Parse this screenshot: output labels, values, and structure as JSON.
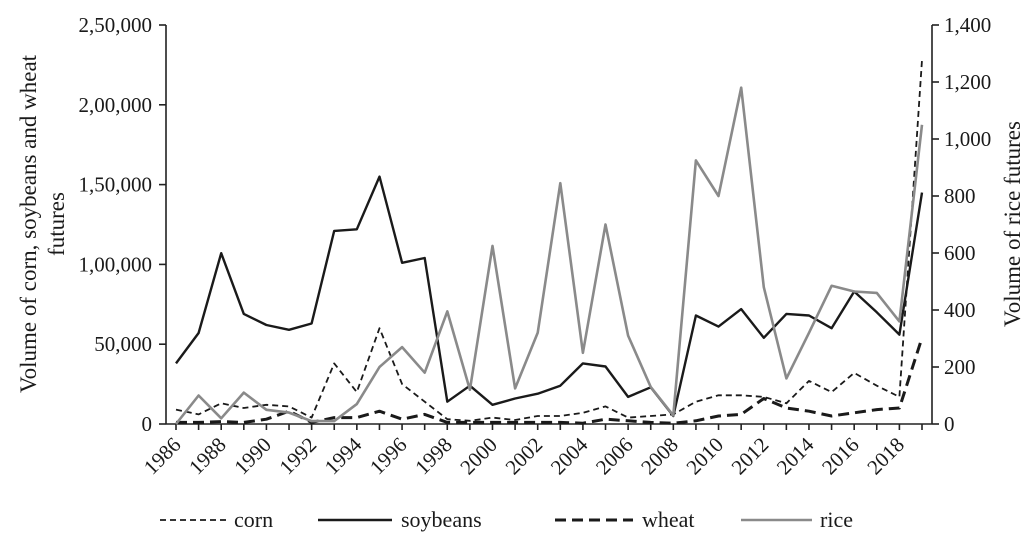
{
  "chart_data": {
    "type": "line",
    "x": [
      1986,
      1987,
      1988,
      1989,
      1990,
      1991,
      1992,
      1993,
      1994,
      1995,
      1996,
      1997,
      1998,
      1999,
      2000,
      2001,
      2002,
      2003,
      2004,
      2005,
      2006,
      2007,
      2008,
      2009,
      2010,
      2011,
      2012,
      2013,
      2014,
      2015,
      2016,
      2017,
      2018,
      2019
    ],
    "x_tick_labels": [
      "1986",
      "1988",
      "1990",
      "1992",
      "1994",
      "1996",
      "1998",
      "2000",
      "2002",
      "2004",
      "2006",
      "2008",
      "2010",
      "2012",
      "2014",
      "2016",
      "2018"
    ],
    "y_left": {
      "label": "Volume of corn, soybeans and wheat futures",
      "label_lines": [
        "Volume of corn, soybeans and wheat",
        "futures"
      ],
      "ylim": [
        0,
        250000
      ],
      "tick_labels": [
        "0",
        "50,000",
        "1,00,000",
        "1,50,000",
        "2,00,000",
        "2,50,000"
      ]
    },
    "y_right": {
      "label": "Volume of rice futures",
      "ylim": [
        0,
        1400
      ],
      "tick_labels": [
        "0",
        "200",
        "400",
        "600",
        "800",
        "1,000",
        "1,200",
        "1,400"
      ]
    },
    "series": [
      {
        "name": "corn",
        "axis": "left",
        "color": "#1a1a1a",
        "dash": "short",
        "values": [
          9000,
          6000,
          13000,
          10000,
          12000,
          11000,
          4000,
          38000,
          20000,
          60000,
          25000,
          14000,
          3000,
          2000,
          4000,
          2500,
          5000,
          5000,
          7000,
          11000,
          4000,
          5000,
          6000,
          14000,
          18000,
          18000,
          17000,
          13000,
          27000,
          20000,
          32000,
          24000,
          17000,
          228000
        ]
      },
      {
        "name": "soybeans",
        "axis": "left",
        "color": "#1a1a1a",
        "dash": "solid",
        "values": [
          38000,
          57000,
          107000,
          69000,
          62000,
          59000,
          63000,
          121000,
          122000,
          155000,
          101000,
          104000,
          14000,
          24000,
          12000,
          16000,
          19000,
          24000,
          38000,
          36000,
          17000,
          23000,
          5000,
          68000,
          61000,
          72000,
          54000,
          69000,
          68000,
          60000,
          83000,
          70000,
          56000,
          145000
        ]
      },
      {
        "name": "wheat",
        "axis": "left",
        "color": "#1a1a1a",
        "dash": "long",
        "values": [
          1000,
          1000,
          1500,
          1000,
          3000,
          8000,
          1000,
          4000,
          4000,
          8000,
          3000,
          6000,
          1000,
          1000,
          1000,
          1000,
          1000,
          1000,
          500,
          3000,
          2000,
          1000,
          500,
          2000,
          5000,
          6000,
          16000,
          10000,
          8000,
          5000,
          7000,
          9000,
          10000,
          54000
        ]
      },
      {
        "name": "rice",
        "axis": "right",
        "color": "#8a8a8a",
        "dash": "solid",
        "values": [
          0,
          100,
          20,
          110,
          50,
          40,
          10,
          10,
          70,
          200,
          270,
          180,
          395,
          120,
          625,
          125,
          320,
          845,
          250,
          700,
          310,
          130,
          30,
          925,
          800,
          1180,
          480,
          160,
          320,
          485,
          465,
          460,
          360,
          1050
        ]
      }
    ],
    "legend": {
      "position": "bottom"
    }
  }
}
